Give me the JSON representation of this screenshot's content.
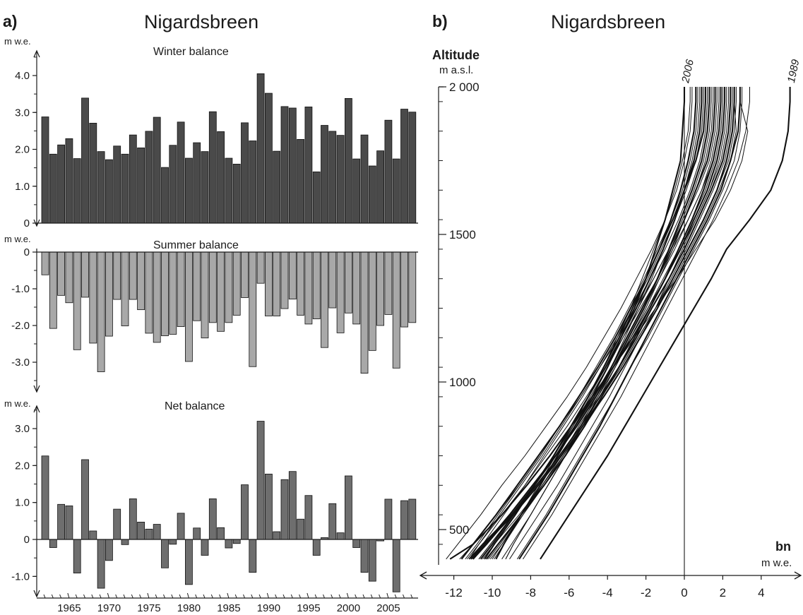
{
  "figure": {
    "panel_a_label": "a)",
    "panel_b_label": "b)",
    "title_a": "Nigardsbreen",
    "title_b": "Nigardsbreen"
  },
  "chart_data": [
    {
      "type": "bar",
      "panel": "a",
      "title": "Winter balance",
      "unit_label": "m w.e.",
      "ylim": [
        0,
        4.5
      ],
      "yticks": [
        "0",
        "1.0",
        "2.0",
        "3.0",
        "4.0"
      ],
      "x": [
        1962,
        1963,
        1964,
        1965,
        1966,
        1967,
        1968,
        1969,
        1970,
        1971,
        1972,
        1973,
        1974,
        1975,
        1976,
        1977,
        1978,
        1979,
        1980,
        1981,
        1982,
        1983,
        1984,
        1985,
        1986,
        1987,
        1988,
        1989,
        1990,
        1991,
        1992,
        1993,
        1994,
        1995,
        1996,
        1997,
        1998,
        1999,
        2000,
        2001,
        2002,
        2003,
        2004,
        2005,
        2006,
        2007,
        2008
      ],
      "values": [
        2.88,
        1.87,
        2.12,
        2.29,
        1.75,
        3.39,
        2.71,
        1.94,
        1.72,
        2.09,
        1.87,
        2.39,
        2.04,
        2.49,
        2.87,
        1.51,
        2.11,
        2.74,
        1.76,
        2.18,
        1.94,
        3.02,
        2.48,
        1.76,
        1.6,
        2.72,
        2.23,
        4.05,
        3.52,
        1.95,
        3.16,
        3.12,
        2.27,
        3.15,
        1.39,
        2.65,
        2.49,
        2.38,
        3.38,
        1.74,
        2.39,
        1.55,
        1.96,
        2.79,
        1.74,
        3.09,
        3.01
      ],
      "color": "#4a4a4a"
    },
    {
      "type": "bar",
      "panel": "a",
      "title": "Summer balance",
      "unit_label": "m w.e.",
      "ylim": [
        -3.6,
        0
      ],
      "yticks": [
        "0",
        "-1.0",
        "-2.0",
        "-3.0"
      ],
      "x": [
        1962,
        1963,
        1964,
        1965,
        1966,
        1967,
        1968,
        1969,
        1970,
        1971,
        1972,
        1973,
        1974,
        1975,
        1976,
        1977,
        1978,
        1979,
        1980,
        1981,
        1982,
        1983,
        1984,
        1985,
        1986,
        1987,
        1988,
        1989,
        1990,
        1991,
        1992,
        1993,
        1994,
        1995,
        1996,
        1997,
        1998,
        1999,
        2000,
        2001,
        2002,
        2003,
        2004,
        2005,
        2006,
        2007,
        2008
      ],
      "values": [
        -0.62,
        -2.08,
        -1.18,
        -1.38,
        -2.66,
        -1.23,
        -2.48,
        -3.26,
        -2.29,
        -1.29,
        -2.01,
        -1.29,
        -1.57,
        -2.21,
        -2.46,
        -2.28,
        -2.24,
        -2.03,
        -2.98,
        -1.87,
        -2.34,
        -1.92,
        -2.16,
        -1.92,
        -1.72,
        -1.24,
        -3.12,
        -0.85,
        -1.74,
        -1.74,
        -1.54,
        -1.28,
        -1.72,
        -1.96,
        -1.82,
        -2.6,
        -1.52,
        -2.2,
        -1.66,
        -1.96,
        -3.3,
        -2.68,
        -2.0,
        -1.7,
        -3.16,
        -2.04,
        -1.92
      ],
      "color": "#a8a8a8"
    },
    {
      "type": "bar",
      "panel": "a",
      "title": "Net balance",
      "unit_label": "m w.e.",
      "ylim": [
        -1.6,
        3.5
      ],
      "yticks": [
        "-1.0",
        "0",
        "1.0",
        "2.0",
        "3.0"
      ],
      "xticks": [
        "1965",
        "1970",
        "1975",
        "1980",
        "1985",
        "1990",
        "1995",
        "2000",
        "2005"
      ],
      "x": [
        1962,
        1963,
        1964,
        1965,
        1966,
        1967,
        1968,
        1969,
        1970,
        1971,
        1972,
        1973,
        1974,
        1975,
        1976,
        1977,
        1978,
        1979,
        1980,
        1981,
        1982,
        1983,
        1984,
        1985,
        1986,
        1987,
        1988,
        1989,
        1990,
        1991,
        1992,
        1993,
        1994,
        1995,
        1996,
        1997,
        1998,
        1999,
        2000,
        2001,
        2002,
        2003,
        2004,
        2005,
        2006,
        2007,
        2008
      ],
      "values": [
        2.26,
        -0.22,
        0.95,
        0.91,
        -0.91,
        2.16,
        0.23,
        -1.32,
        -0.57,
        0.82,
        -0.14,
        1.1,
        0.47,
        0.28,
        0.41,
        -0.77,
        -0.13,
        0.71,
        -1.22,
        0.31,
        -0.43,
        1.1,
        0.32,
        -0.23,
        -0.11,
        1.48,
        -0.89,
        3.2,
        1.77,
        0.21,
        1.62,
        1.84,
        0.55,
        1.19,
        -0.43,
        0.05,
        0.97,
        0.18,
        1.72,
        -0.22,
        -0.89,
        -1.13,
        -0.04,
        1.09,
        -1.42,
        1.05,
        1.09
      ],
      "color": "#6e6e6e"
    },
    {
      "type": "line",
      "panel": "b",
      "ylabel": "Altitude",
      "ylabel_unit": "m a.s.l.",
      "xlabel": "bn",
      "xlabel_unit": "m w.e.",
      "xlim": [
        -12.7,
        6.2
      ],
      "ylim": [
        380,
        2000
      ],
      "xticks": [
        "-12",
        "-10",
        "-8",
        "-6",
        "-4",
        "-2",
        "0",
        "4",
        "2"
      ],
      "yticks": [
        "500",
        "1000",
        "1500",
        "2 000"
      ],
      "curve_altitudes": [
        1950,
        1850,
        1750,
        1650,
        1550,
        1450,
        1350,
        1250,
        1150,
        1050,
        950,
        850,
        750,
        650,
        550,
        450,
        400
      ],
      "series": [
        {
          "name": "2006",
          "bold": true,
          "values": [
            0.0,
            -0.1,
            -0.2,
            -0.6,
            -1.0,
            -1.5,
            -2.0,
            -2.6,
            -3.3,
            -4.0,
            -4.8,
            -5.7,
            -6.6,
            -7.5,
            -8.5,
            -9.4,
            -9.8
          ]
        },
        {
          "name": "1989",
          "bold": true,
          "values": [
            5.5,
            5.4,
            5.1,
            4.5,
            3.4,
            2.2,
            1.4,
            0.5,
            -0.4,
            -1.3,
            -2.2,
            -3.1,
            -4.0,
            -5.0,
            -6.0,
            -7.0,
            -7.5
          ]
        },
        {
          "bold": true,
          "values": [
            2.6,
            2.5,
            2.2,
            1.7,
            1.0,
            0.2,
            -0.6,
            -1.4,
            -2.3,
            -3.2,
            -4.2,
            -5.3,
            -6.4,
            -7.6,
            -8.9,
            -10.4,
            -11.1
          ]
        },
        {
          "bold": true,
          "values": [
            1.3,
            1.2,
            0.9,
            0.4,
            -0.2,
            -0.8,
            -1.4,
            -2.1,
            -2.9,
            -3.7,
            -4.6,
            -5.6,
            -6.7,
            -7.9,
            -9.1,
            -10.4,
            -11.0
          ]
        },
        {
          "bold": true,
          "values": [
            1.9,
            1.8,
            1.5,
            1.0,
            0.4,
            -0.3,
            -1.0,
            -1.8,
            -2.6,
            -3.4,
            -4.3,
            -5.2,
            -6.2,
            -7.3,
            -8.5,
            -9.7,
            -10.3
          ]
        },
        {
          "bold": true,
          "values": [
            2.4,
            2.3,
            2.0,
            1.4,
            0.7,
            0.0,
            -0.8,
            -1.7,
            -2.5,
            -3.4,
            -4.4,
            -5.4,
            -6.5,
            -7.7,
            -9.0,
            -10.5,
            -11.2
          ]
        },
        {
          "bold": true,
          "values": [
            1.1,
            1.0,
            0.6,
            0.0,
            -0.6,
            -1.3,
            -2.0,
            -2.8,
            -3.6,
            -4.5,
            -5.5,
            -6.5,
            -7.6,
            -8.7,
            -9.8,
            -11.0,
            -11.6
          ]
        },
        {
          "bold": true,
          "values": [
            0.6,
            0.5,
            0.2,
            -0.2,
            -0.7,
            -1.3,
            -2.0,
            -2.7,
            -3.4,
            -4.2,
            -5.0,
            -5.9,
            -6.8,
            -7.8,
            -8.8,
            -9.9,
            -10.4
          ]
        },
        {
          "bold": true,
          "values": [
            2.9,
            2.8,
            2.4,
            1.9,
            1.2,
            0.4,
            -0.4,
            -1.2,
            -2.0,
            -2.8,
            -3.6,
            -4.4,
            -5.3,
            -6.2,
            -7.1,
            -8.1,
            -8.6
          ]
        },
        {
          "bold": true,
          "values": [
            1.6,
            1.5,
            1.2,
            0.6,
            0.0,
            -0.7,
            -1.4,
            -2.2,
            -3.0,
            -3.8,
            -4.7,
            -5.7,
            -6.7,
            -7.8,
            -9.0,
            -10.3,
            -11.0
          ]
        },
        {
          "bold": true,
          "values": [
            2.1,
            2.0,
            1.7,
            1.2,
            0.5,
            -0.2,
            -1.0,
            -1.8,
            -2.7,
            -3.7,
            -4.8,
            -5.9,
            -7.0,
            -8.2,
            -9.5,
            -11.0,
            -12.2
          ]
        },
        {
          "bold": true,
          "values": [
            0.9,
            0.8,
            0.5,
            0.0,
            -0.5,
            -1.1,
            -1.8,
            -2.5,
            -3.3,
            -4.1,
            -5.0,
            -5.9,
            -6.8,
            -7.8,
            -8.9,
            -10.0,
            -10.6
          ]
        },
        {
          "values": [
            2.9,
            3.3,
            3.0,
            2.4,
            1.6,
            0.6,
            -0.4,
            -1.5,
            -2.6,
            -3.7,
            -4.8,
            -5.8,
            -6.8,
            -7.8,
            -8.8,
            -9.9,
            -10.4
          ]
        },
        {
          "values": [
            3.4,
            3.2,
            2.8,
            2.2,
            1.5,
            0.7,
            -0.1,
            -0.9,
            -1.7,
            -2.5,
            -3.3,
            -4.2,
            -5.1,
            -6.0,
            -6.9,
            -7.9,
            -8.4
          ]
        },
        {
          "values": [
            2.2,
            2.1,
            1.8,
            1.3,
            0.6,
            -0.1,
            -0.8,
            -1.5,
            -2.3,
            -3.1,
            -3.9,
            -4.8,
            -5.7,
            -6.6,
            -7.6,
            -8.6,
            -9.1
          ]
        },
        {
          "values": [
            1.4,
            1.3,
            1.0,
            0.5,
            -0.1,
            -0.8,
            -1.6,
            -2.5,
            -3.4,
            -4.4,
            -5.4,
            -6.5,
            -7.5,
            -8.6,
            -9.8,
            -11.0,
            -11.7
          ]
        },
        {
          "values": [
            0.4,
            0.3,
            0.0,
            -0.4,
            -1.0,
            -1.7,
            -2.5,
            -3.3,
            -4.2,
            -5.1,
            -6.1,
            -7.2,
            -8.3,
            -9.5,
            -10.6,
            -11.8,
            -12.4
          ]
        },
        {
          "values": [
            1.7,
            1.6,
            1.3,
            0.7,
            0.0,
            -0.8,
            -1.6,
            -2.4,
            -3.2,
            -4.0,
            -4.9,
            -5.8,
            -6.8,
            -7.8,
            -8.9,
            -10.1,
            -10.7
          ]
        },
        {
          "values": [
            2.6,
            2.7,
            2.4,
            1.8,
            1.1,
            0.3,
            -0.5,
            -1.4,
            -2.3,
            -3.2,
            -4.2,
            -5.2,
            -6.3,
            -7.4,
            -8.6,
            -9.9,
            -10.5
          ]
        },
        {
          "values": [
            1.0,
            0.9,
            0.6,
            0.1,
            -0.5,
            -1.2,
            -1.9,
            -2.7,
            -3.5,
            -4.4,
            -5.3,
            -6.3,
            -7.3,
            -8.3,
            -9.4,
            -10.5,
            -11.1
          ]
        },
        {
          "values": [
            2.0,
            1.9,
            1.6,
            1.1,
            0.4,
            -0.3,
            -1.1,
            -1.9,
            -2.8,
            -3.6,
            -4.5,
            -5.5,
            -6.4,
            -7.4,
            -8.4,
            -9.4,
            -9.9
          ]
        },
        {
          "values": [
            3.0,
            2.9,
            2.6,
            2.0,
            1.3,
            0.5,
            -0.3,
            -1.1,
            -1.9,
            -2.8,
            -3.6,
            -4.5,
            -5.4,
            -6.3,
            -7.2,
            -8.2,
            -8.7
          ]
        },
        {
          "values": [
            0.7,
            0.6,
            0.3,
            -0.1,
            -0.7,
            -1.4,
            -2.1,
            -2.9,
            -3.7,
            -4.6,
            -5.5,
            -6.5,
            -7.5,
            -8.6,
            -9.7,
            -10.8,
            -11.4
          ]
        },
        {
          "values": [
            2.5,
            2.4,
            2.1,
            1.5,
            0.8,
            0.1,
            -0.7,
            -1.5,
            -2.4,
            -3.3,
            -4.3,
            -5.3,
            -6.3,
            -7.3,
            -8.4,
            -9.5,
            -10.1
          ]
        },
        {
          "values": [
            1.2,
            1.1,
            0.8,
            0.3,
            -0.3,
            -1.0,
            -1.8,
            -2.6,
            -3.5,
            -4.4,
            -5.4,
            -6.4,
            -7.4,
            -8.5,
            -9.6,
            -10.7,
            -11.2
          ]
        },
        {
          "values": [
            0.3,
            0.2,
            -0.1,
            -0.5,
            -1.0,
            -1.6,
            -2.2,
            -2.8,
            -3.5,
            -4.2,
            -5.0,
            -5.8,
            -6.7,
            -7.6,
            -8.5,
            -9.5,
            -10.0
          ]
        },
        {
          "values": [
            1.8,
            1.7,
            1.4,
            0.9,
            0.2,
            -0.5,
            -1.3,
            -2.1,
            -2.9,
            -3.7,
            -4.5,
            -5.3,
            -6.2,
            -7.1,
            -8.0,
            -9.0,
            -9.5
          ]
        },
        {
          "values": [
            2.3,
            2.2,
            1.9,
            1.3,
            0.6,
            -0.2,
            -1.0,
            -1.9,
            -2.8,
            -3.7,
            -4.7,
            -5.7,
            -6.7,
            -7.8,
            -8.9,
            -10.1,
            -10.7
          ]
        },
        {
          "values": [
            1.5,
            1.4,
            1.1,
            0.6,
            0.0,
            -0.6,
            -1.3,
            -2.0,
            -2.8,
            -3.6,
            -4.4,
            -5.3,
            -6.2,
            -7.1,
            -8.0,
            -8.9,
            -9.3
          ]
        },
        {
          "values": [
            0.8,
            0.7,
            0.4,
            0.0,
            -0.5,
            -1.1,
            -1.7,
            -2.4,
            -3.1,
            -3.8,
            -4.6,
            -5.4,
            -6.2,
            -7.1,
            -8.0,
            -8.9,
            -9.3
          ]
        },
        {
          "values": [
            2.7,
            2.6,
            2.3,
            1.7,
            1.0,
            0.2,
            -0.6,
            -1.5,
            -2.4,
            -3.3,
            -4.3,
            -5.3,
            -6.3,
            -7.4,
            -8.5,
            -9.6,
            -10.2
          ]
        },
        {
          "values": [
            1.9,
            1.8,
            1.5,
            0.9,
            0.2,
            -0.6,
            -1.4,
            -2.3,
            -3.2,
            -4.1,
            -5.1,
            -6.1,
            -7.2,
            -8.3,
            -9.5,
            -10.7,
            -11.3
          ]
        }
      ]
    }
  ]
}
